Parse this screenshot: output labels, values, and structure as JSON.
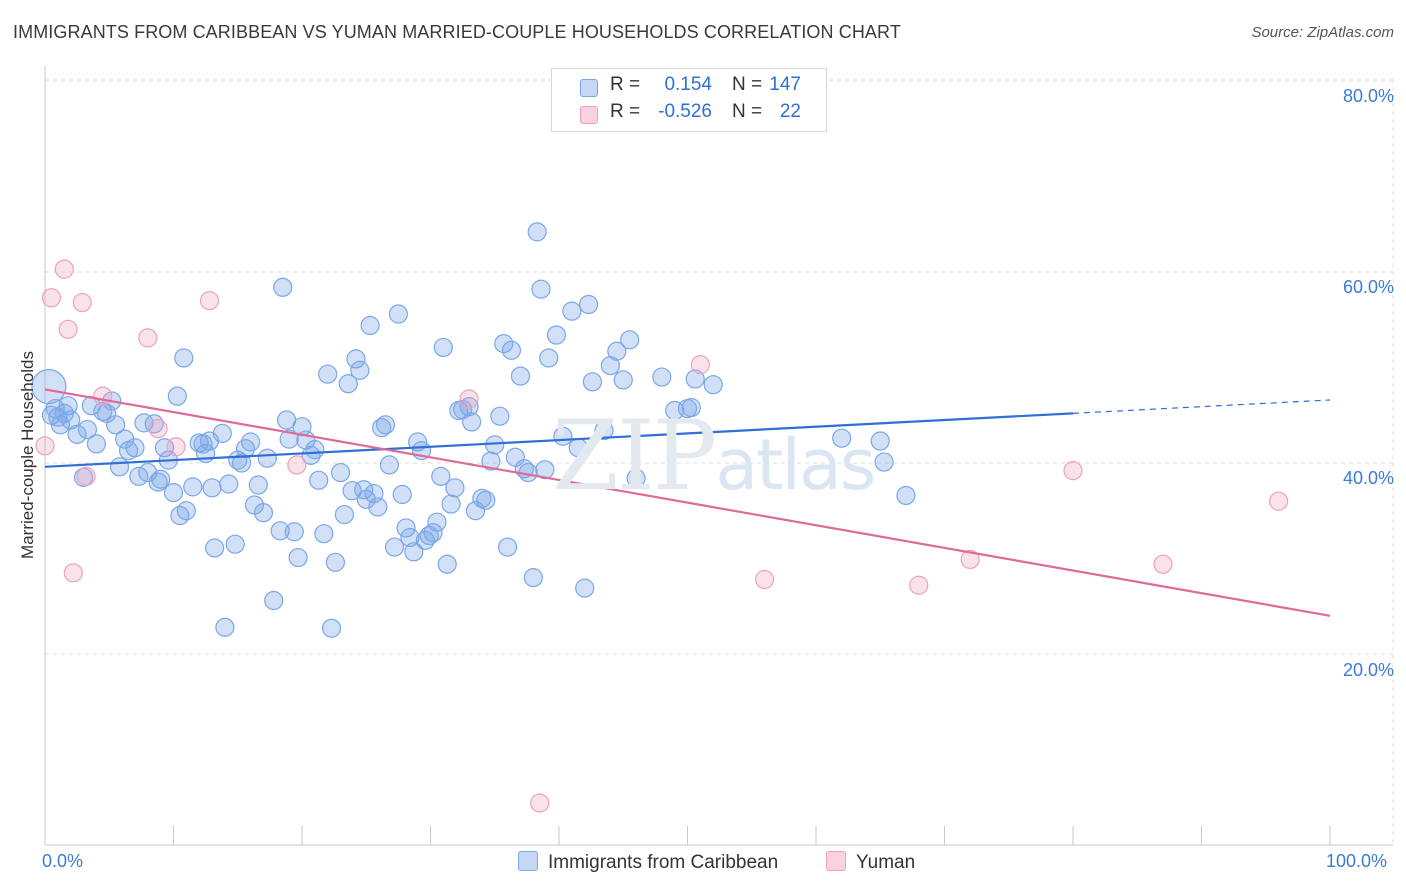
{
  "title": "IMMIGRANTS FROM CARIBBEAN VS YUMAN MARRIED-COUPLE HOUSEHOLDS CORRELATION CHART",
  "source": "Source: ZipAtlas.com",
  "watermark": {
    "zip": "ZIP",
    "atlas": "atlas"
  },
  "legend": {
    "rows": [
      {
        "r_label": "R =",
        "r_value": "0.154",
        "n_label": "N =",
        "n_value": "147",
        "color": "#7aa7e8"
      },
      {
        "r_label": "R =",
        "r_value": "-0.526",
        "n_label": "N =",
        "n_value": "22",
        "color": "#f0a0bb"
      }
    ]
  },
  "bottom_legend": [
    "Immigrants from Caribbean",
    "Yuman"
  ],
  "y_ticks": [
    "80.0%",
    "60.0%",
    "40.0%",
    "20.0%"
  ],
  "x_ticks": [
    "0.0%",
    "100.0%"
  ],
  "chart_data": {
    "type": "scatter",
    "title": "IMMIGRANTS FROM CARIBBEAN VS YUMAN MARRIED-COUPLE HOUSEHOLDS CORRELATION CHART",
    "xlabel": "",
    "ylabel": "Married-couple Households",
    "xlim": [
      0,
      100
    ],
    "ylim": [
      0,
      80
    ],
    "grid": true,
    "legend_position": "top-center",
    "series": [
      {
        "name": "Immigrants from Caribbean",
        "color": "#7aa7e8",
        "line_color": "#2f6fd6",
        "trend": {
          "x": [
            0,
            80
          ],
          "y": [
            39.6,
            45.2
          ]
        },
        "trend_dashed_extension": {
          "x": [
            80,
            100
          ],
          "y": [
            45.2,
            46.6
          ]
        },
        "points": [
          [
            0.3,
            48.0
          ],
          [
            0.5,
            45.0
          ],
          [
            0.8,
            45.7
          ],
          [
            1.0,
            44.8
          ],
          [
            1.2,
            44.0
          ],
          [
            1.5,
            45.2
          ],
          [
            1.8,
            46.0
          ],
          [
            2.0,
            44.5
          ],
          [
            2.5,
            43.0
          ],
          [
            3.0,
            38.5
          ],
          [
            3.3,
            43.5
          ],
          [
            3.6,
            46.0
          ],
          [
            4.0,
            42.0
          ],
          [
            4.5,
            45.4
          ],
          [
            4.8,
            45.2
          ],
          [
            5.2,
            46.5
          ],
          [
            5.5,
            44.0
          ],
          [
            5.8,
            39.6
          ],
          [
            6.2,
            42.5
          ],
          [
            6.5,
            41.3
          ],
          [
            7.0,
            41.6
          ],
          [
            7.3,
            38.6
          ],
          [
            7.7,
            44.2
          ],
          [
            8.0,
            39.0
          ],
          [
            8.5,
            44.1
          ],
          [
            8.8,
            38.0
          ],
          [
            9.0,
            38.3
          ],
          [
            9.3,
            41.6
          ],
          [
            9.6,
            40.3
          ],
          [
            10.0,
            36.9
          ],
          [
            10.3,
            47.0
          ],
          [
            10.5,
            34.5
          ],
          [
            10.8,
            51.0
          ],
          [
            11.0,
            35.0
          ],
          [
            11.5,
            37.5
          ],
          [
            12.0,
            42.1
          ],
          [
            12.3,
            42.0
          ],
          [
            12.5,
            41.0
          ],
          [
            12.8,
            42.3
          ],
          [
            13.0,
            37.4
          ],
          [
            13.2,
            31.1
          ],
          [
            13.8,
            43.1
          ],
          [
            14.0,
            22.8
          ],
          [
            14.3,
            37.8
          ],
          [
            14.8,
            31.5
          ],
          [
            15.0,
            40.3
          ],
          [
            15.3,
            40.0
          ],
          [
            15.6,
            41.5
          ],
          [
            16.0,
            42.2
          ],
          [
            16.3,
            35.6
          ],
          [
            16.6,
            37.7
          ],
          [
            17.0,
            34.8
          ],
          [
            17.3,
            40.5
          ],
          [
            17.8,
            25.6
          ],
          [
            18.3,
            32.9
          ],
          [
            18.5,
            58.4
          ],
          [
            18.8,
            44.5
          ],
          [
            19.0,
            42.5
          ],
          [
            19.4,
            32.8
          ],
          [
            19.7,
            30.1
          ],
          [
            20.0,
            43.8
          ],
          [
            20.3,
            42.4
          ],
          [
            20.7,
            40.8
          ],
          [
            21.0,
            41.4
          ],
          [
            21.3,
            38.2
          ],
          [
            21.7,
            32.6
          ],
          [
            22.0,
            49.3
          ],
          [
            22.3,
            22.7
          ],
          [
            22.6,
            29.6
          ],
          [
            23.0,
            39.0
          ],
          [
            23.3,
            34.6
          ],
          [
            23.6,
            48.3
          ],
          [
            23.9,
            37.1
          ],
          [
            24.2,
            50.9
          ],
          [
            24.5,
            49.7
          ],
          [
            24.8,
            37.2
          ],
          [
            25.0,
            36.2
          ],
          [
            25.3,
            54.4
          ],
          [
            25.6,
            36.8
          ],
          [
            25.9,
            35.4
          ],
          [
            26.2,
            43.7
          ],
          [
            26.5,
            44.0
          ],
          [
            26.8,
            39.8
          ],
          [
            27.2,
            31.2
          ],
          [
            27.5,
            55.6
          ],
          [
            27.8,
            36.7
          ],
          [
            28.1,
            33.2
          ],
          [
            28.4,
            32.2
          ],
          [
            28.7,
            30.7
          ],
          [
            29.0,
            42.2
          ],
          [
            29.3,
            41.3
          ],
          [
            29.6,
            31.9
          ],
          [
            29.9,
            32.4
          ],
          [
            30.2,
            32.7
          ],
          [
            30.5,
            33.8
          ],
          [
            30.8,
            38.6
          ],
          [
            31.0,
            52.1
          ],
          [
            31.3,
            29.4
          ],
          [
            31.6,
            35.7
          ],
          [
            31.9,
            37.4
          ],
          [
            32.2,
            45.5
          ],
          [
            32.5,
            45.6
          ],
          [
            33.0,
            45.9
          ],
          [
            33.2,
            44.3
          ],
          [
            33.5,
            35.0
          ],
          [
            34.0,
            36.3
          ],
          [
            34.3,
            36.1
          ],
          [
            34.7,
            40.2
          ],
          [
            35.0,
            41.9
          ],
          [
            35.4,
            44.9
          ],
          [
            35.7,
            52.5
          ],
          [
            36.0,
            31.2
          ],
          [
            36.3,
            51.8
          ],
          [
            36.6,
            40.6
          ],
          [
            37.0,
            49.1
          ],
          [
            37.3,
            39.4
          ],
          [
            37.6,
            39.0
          ],
          [
            38.0,
            28.0
          ],
          [
            38.3,
            64.2
          ],
          [
            38.6,
            58.2
          ],
          [
            38.9,
            39.3
          ],
          [
            39.2,
            51.0
          ],
          [
            39.8,
            53.4
          ],
          [
            40.3,
            42.8
          ],
          [
            41.0,
            55.9
          ],
          [
            41.5,
            41.6
          ],
          [
            42.0,
            26.9
          ],
          [
            42.3,
            56.6
          ],
          [
            42.6,
            48.5
          ],
          [
            43.5,
            43.4
          ],
          [
            44.0,
            50.2
          ],
          [
            44.5,
            51.7
          ],
          [
            45.0,
            48.7
          ],
          [
            45.5,
            52.9
          ],
          [
            46.0,
            38.4
          ],
          [
            48.0,
            49.0
          ],
          [
            49.0,
            45.5
          ],
          [
            50.0,
            45.7
          ],
          [
            50.3,
            45.8
          ],
          [
            50.6,
            48.8
          ],
          [
            52.0,
            48.2
          ],
          [
            62.0,
            42.6
          ],
          [
            65.0,
            42.3
          ],
          [
            65.3,
            40.1
          ],
          [
            67.0,
            36.6
          ]
        ]
      },
      {
        "name": "Yuman",
        "color": "#f0a0bb",
        "line_color": "#e06a97",
        "trend": {
          "x": [
            0,
            100
          ],
          "y": [
            47.7,
            24.0
          ]
        },
        "points": [
          [
            0.0,
            41.8
          ],
          [
            0.5,
            57.3
          ],
          [
            1.5,
            60.3
          ],
          [
            1.8,
            54.0
          ],
          [
            2.2,
            28.5
          ],
          [
            2.9,
            56.8
          ],
          [
            3.2,
            38.6
          ],
          [
            4.5,
            47.0
          ],
          [
            8.0,
            53.1
          ],
          [
            8.8,
            43.6
          ],
          [
            10.2,
            41.7
          ],
          [
            12.8,
            57.0
          ],
          [
            19.6,
            39.8
          ],
          [
            33.0,
            46.7
          ],
          [
            38.5,
            4.4
          ],
          [
            51.0,
            50.3
          ],
          [
            56.0,
            27.8
          ],
          [
            68.0,
            27.2
          ],
          [
            72.0,
            29.9
          ],
          [
            80.0,
            39.2
          ],
          [
            87.0,
            29.4
          ],
          [
            96.0,
            36.0
          ]
        ]
      }
    ]
  }
}
